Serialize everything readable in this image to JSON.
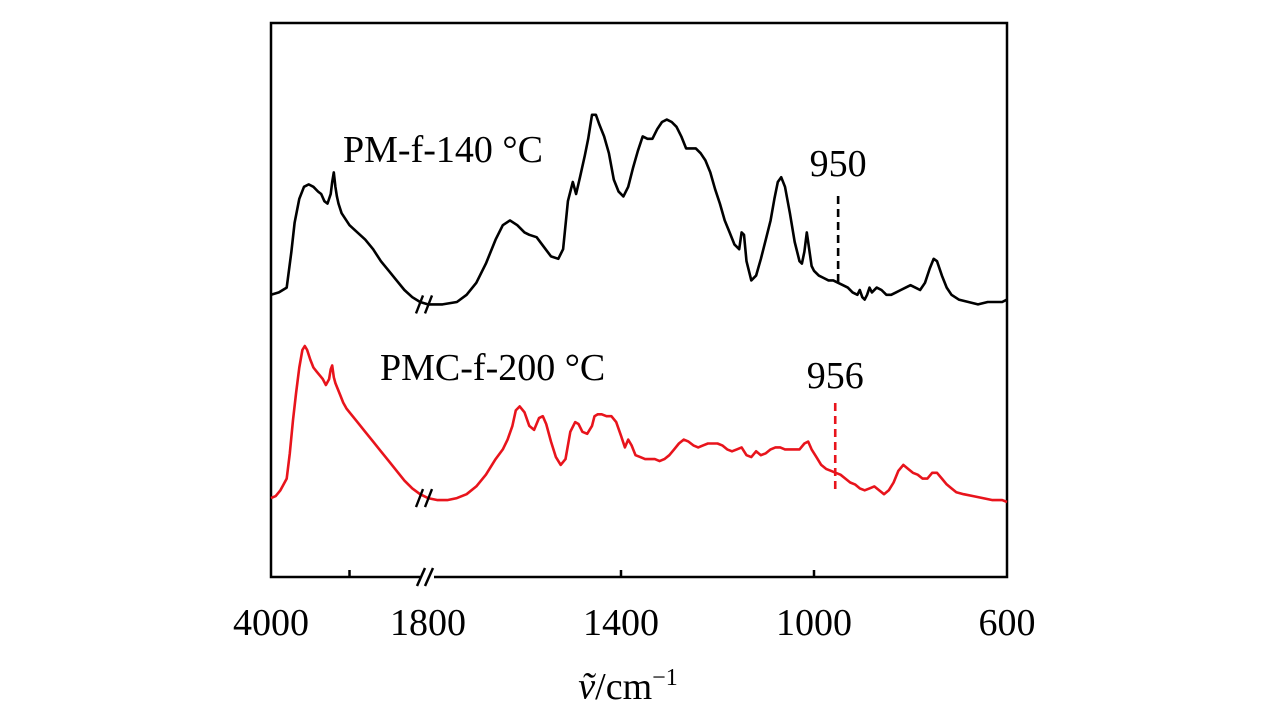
{
  "chart_data": {
    "type": "line",
    "title": "",
    "xlabel": "ṽ/cm⁻¹",
    "xlabel_parts": {
      "symbol": "ṽ",
      "unit": "/cm",
      "exponent": "−1"
    },
    "ylabel": "",
    "x_reversed": true,
    "x_break": [
      3000,
      1800
    ],
    "segments": {
      "high": {
        "xlim": [
          4000,
          3000
        ],
        "ticks": [
          4000,
          3500
        ]
      },
      "low": {
        "xlim": [
          1800,
          600
        ],
        "ticks": [
          1800,
          1400,
          1000,
          600
        ]
      }
    },
    "tick_labels": [
      "4000",
      "1800",
      "1400",
      "1000",
      "600"
    ],
    "grid": false,
    "legend": "none",
    "series": [
      {
        "name": "PM-f-140 °C",
        "color": "#000000",
        "high": [
          [
            4000,
            0.08
          ],
          [
            3950,
            0.09
          ],
          [
            3900,
            0.11
          ],
          [
            3870,
            0.26
          ],
          [
            3850,
            0.38
          ],
          [
            3820,
            0.48
          ],
          [
            3790,
            0.53
          ],
          [
            3760,
            0.54
          ],
          [
            3730,
            0.53
          ],
          [
            3700,
            0.51
          ],
          [
            3680,
            0.5
          ],
          [
            3660,
            0.47
          ],
          [
            3640,
            0.46
          ],
          [
            3620,
            0.5
          ],
          [
            3610,
            0.55
          ],
          [
            3600,
            0.59
          ],
          [
            3590,
            0.53
          ],
          [
            3580,
            0.49
          ],
          [
            3570,
            0.46
          ],
          [
            3550,
            0.42
          ],
          [
            3500,
            0.37
          ],
          [
            3450,
            0.34
          ],
          [
            3400,
            0.31
          ],
          [
            3350,
            0.27
          ],
          [
            3300,
            0.22
          ],
          [
            3250,
            0.18
          ],
          [
            3200,
            0.14
          ],
          [
            3150,
            0.1
          ],
          [
            3100,
            0.07
          ],
          [
            3050,
            0.05
          ],
          [
            3000,
            0.04
          ]
        ],
        "low": [
          [
            1800,
            0.04
          ],
          [
            1770,
            0.04
          ],
          [
            1740,
            0.05
          ],
          [
            1720,
            0.08
          ],
          [
            1700,
            0.13
          ],
          [
            1680,
            0.21
          ],
          [
            1660,
            0.31
          ],
          [
            1645,
            0.37
          ],
          [
            1630,
            0.39
          ],
          [
            1615,
            0.37
          ],
          [
            1600,
            0.34
          ],
          [
            1590,
            0.33
          ],
          [
            1575,
            0.32
          ],
          [
            1560,
            0.28
          ],
          [
            1545,
            0.24
          ],
          [
            1530,
            0.23
          ],
          [
            1520,
            0.27
          ],
          [
            1510,
            0.47
          ],
          [
            1500,
            0.55
          ],
          [
            1493,
            0.5
          ],
          [
            1485,
            0.57
          ],
          [
            1475,
            0.66
          ],
          [
            1468,
            0.73
          ],
          [
            1460,
            0.83
          ],
          [
            1452,
            0.83
          ],
          [
            1445,
            0.79
          ],
          [
            1435,
            0.74
          ],
          [
            1425,
            0.67
          ],
          [
            1415,
            0.56
          ],
          [
            1405,
            0.51
          ],
          [
            1395,
            0.49
          ],
          [
            1385,
            0.53
          ],
          [
            1375,
            0.61
          ],
          [
            1365,
            0.68
          ],
          [
            1355,
            0.74
          ],
          [
            1345,
            0.73
          ],
          [
            1335,
            0.73
          ],
          [
            1325,
            0.77
          ],
          [
            1315,
            0.8
          ],
          [
            1305,
            0.81
          ],
          [
            1295,
            0.8
          ],
          [
            1285,
            0.78
          ],
          [
            1275,
            0.74
          ],
          [
            1265,
            0.69
          ],
          [
            1255,
            0.69
          ],
          [
            1245,
            0.69
          ],
          [
            1235,
            0.67
          ],
          [
            1225,
            0.64
          ],
          [
            1215,
            0.59
          ],
          [
            1205,
            0.52
          ],
          [
            1195,
            0.46
          ],
          [
            1185,
            0.39
          ],
          [
            1175,
            0.34
          ],
          [
            1165,
            0.29
          ],
          [
            1155,
            0.27
          ],
          [
            1150,
            0.34
          ],
          [
            1145,
            0.33
          ],
          [
            1140,
            0.22
          ],
          [
            1130,
            0.14
          ],
          [
            1120,
            0.16
          ],
          [
            1110,
            0.23
          ],
          [
            1100,
            0.31
          ],
          [
            1090,
            0.39
          ],
          [
            1082,
            0.48
          ],
          [
            1075,
            0.55
          ],
          [
            1068,
            0.57
          ],
          [
            1060,
            0.53
          ],
          [
            1050,
            0.42
          ],
          [
            1040,
            0.3
          ],
          [
            1030,
            0.22
          ],
          [
            1025,
            0.21
          ],
          [
            1020,
            0.26
          ],
          [
            1015,
            0.34
          ],
          [
            1010,
            0.27
          ],
          [
            1005,
            0.2
          ],
          [
            1000,
            0.18
          ],
          [
            990,
            0.16
          ],
          [
            980,
            0.15
          ],
          [
            970,
            0.14
          ],
          [
            960,
            0.14
          ],
          [
            950,
            0.13
          ],
          [
            940,
            0.12
          ],
          [
            930,
            0.11
          ],
          [
            920,
            0.09
          ],
          [
            910,
            0.08
          ],
          [
            905,
            0.1
          ],
          [
            900,
            0.07
          ],
          [
            895,
            0.06
          ],
          [
            890,
            0.08
          ],
          [
            885,
            0.11
          ],
          [
            880,
            0.09
          ],
          [
            870,
            0.11
          ],
          [
            860,
            0.1
          ],
          [
            850,
            0.08
          ],
          [
            840,
            0.08
          ],
          [
            830,
            0.09
          ],
          [
            820,
            0.1
          ],
          [
            810,
            0.11
          ],
          [
            800,
            0.12
          ],
          [
            790,
            0.11
          ],
          [
            780,
            0.1
          ],
          [
            770,
            0.13
          ],
          [
            760,
            0.19
          ],
          [
            752,
            0.23
          ],
          [
            745,
            0.22
          ],
          [
            735,
            0.16
          ],
          [
            725,
            0.11
          ],
          [
            715,
            0.08
          ],
          [
            700,
            0.06
          ],
          [
            680,
            0.05
          ],
          [
            660,
            0.04
          ],
          [
            640,
            0.05
          ],
          [
            620,
            0.05
          ],
          [
            610,
            0.05
          ],
          [
            600,
            0.06
          ]
        ]
      },
      {
        "name": "PMC-f-200 °C",
        "color": "#e8141c",
        "high": [
          [
            4000,
            0.02
          ],
          [
            3970,
            0.03
          ],
          [
            3940,
            0.06
          ],
          [
            3920,
            0.09
          ],
          [
            3900,
            0.12
          ],
          [
            3880,
            0.25
          ],
          [
            3860,
            0.42
          ],
          [
            3840,
            0.56
          ],
          [
            3820,
            0.69
          ],
          [
            3800,
            0.78
          ],
          [
            3785,
            0.8
          ],
          [
            3770,
            0.78
          ],
          [
            3750,
            0.73
          ],
          [
            3730,
            0.69
          ],
          [
            3710,
            0.67
          ],
          [
            3690,
            0.65
          ],
          [
            3670,
            0.63
          ],
          [
            3650,
            0.6
          ],
          [
            3630,
            0.63
          ],
          [
            3620,
            0.68
          ],
          [
            3610,
            0.7
          ],
          [
            3600,
            0.64
          ],
          [
            3590,
            0.61
          ],
          [
            3580,
            0.59
          ],
          [
            3560,
            0.55
          ],
          [
            3540,
            0.51
          ],
          [
            3520,
            0.48
          ],
          [
            3500,
            0.46
          ],
          [
            3450,
            0.41
          ],
          [
            3400,
            0.36
          ],
          [
            3350,
            0.31
          ],
          [
            3300,
            0.26
          ],
          [
            3250,
            0.21
          ],
          [
            3200,
            0.16
          ],
          [
            3150,
            0.11
          ],
          [
            3100,
            0.07
          ],
          [
            3050,
            0.04
          ],
          [
            3000,
            0.02
          ]
        ],
        "low": [
          [
            1800,
            0.02
          ],
          [
            1780,
            0.01
          ],
          [
            1760,
            0.01
          ],
          [
            1740,
            0.02
          ],
          [
            1720,
            0.04
          ],
          [
            1700,
            0.08
          ],
          [
            1680,
            0.14
          ],
          [
            1660,
            0.22
          ],
          [
            1645,
            0.27
          ],
          [
            1635,
            0.32
          ],
          [
            1625,
            0.39
          ],
          [
            1618,
            0.47
          ],
          [
            1610,
            0.49
          ],
          [
            1600,
            0.46
          ],
          [
            1590,
            0.39
          ],
          [
            1580,
            0.37
          ],
          [
            1570,
            0.43
          ],
          [
            1562,
            0.44
          ],
          [
            1555,
            0.4
          ],
          [
            1545,
            0.31
          ],
          [
            1535,
            0.23
          ],
          [
            1525,
            0.19
          ],
          [
            1515,
            0.22
          ],
          [
            1505,
            0.36
          ],
          [
            1495,
            0.41
          ],
          [
            1488,
            0.4
          ],
          [
            1480,
            0.36
          ],
          [
            1470,
            0.35
          ],
          [
            1460,
            0.39
          ],
          [
            1455,
            0.44
          ],
          [
            1448,
            0.45
          ],
          [
            1440,
            0.45
          ],
          [
            1430,
            0.44
          ],
          [
            1420,
            0.44
          ],
          [
            1410,
            0.41
          ],
          [
            1400,
            0.34
          ],
          [
            1392,
            0.28
          ],
          [
            1385,
            0.32
          ],
          [
            1378,
            0.29
          ],
          [
            1370,
            0.24
          ],
          [
            1360,
            0.23
          ],
          [
            1350,
            0.22
          ],
          [
            1340,
            0.22
          ],
          [
            1330,
            0.22
          ],
          [
            1320,
            0.21
          ],
          [
            1310,
            0.22
          ],
          [
            1300,
            0.24
          ],
          [
            1290,
            0.27
          ],
          [
            1280,
            0.3
          ],
          [
            1270,
            0.32
          ],
          [
            1260,
            0.31
          ],
          [
            1250,
            0.29
          ],
          [
            1240,
            0.28
          ],
          [
            1230,
            0.29
          ],
          [
            1220,
            0.3
          ],
          [
            1210,
            0.3
          ],
          [
            1200,
            0.3
          ],
          [
            1190,
            0.29
          ],
          [
            1180,
            0.27
          ],
          [
            1170,
            0.26
          ],
          [
            1160,
            0.27
          ],
          [
            1150,
            0.28
          ],
          [
            1140,
            0.24
          ],
          [
            1130,
            0.23
          ],
          [
            1120,
            0.26
          ],
          [
            1110,
            0.24
          ],
          [
            1100,
            0.25
          ],
          [
            1090,
            0.27
          ],
          [
            1080,
            0.28
          ],
          [
            1070,
            0.28
          ],
          [
            1060,
            0.27
          ],
          [
            1050,
            0.27
          ],
          [
            1040,
            0.27
          ],
          [
            1030,
            0.27
          ],
          [
            1020,
            0.3
          ],
          [
            1012,
            0.31
          ],
          [
            1005,
            0.27
          ],
          [
            995,
            0.23
          ],
          [
            985,
            0.19
          ],
          [
            975,
            0.17
          ],
          [
            965,
            0.16
          ],
          [
            955,
            0.15
          ],
          [
            945,
            0.14
          ],
          [
            935,
            0.12
          ],
          [
            925,
            0.1
          ],
          [
            915,
            0.09
          ],
          [
            905,
            0.07
          ],
          [
            895,
            0.06
          ],
          [
            885,
            0.07
          ],
          [
            875,
            0.08
          ],
          [
            865,
            0.06
          ],
          [
            855,
            0.04
          ],
          [
            845,
            0.06
          ],
          [
            835,
            0.1
          ],
          [
            825,
            0.16
          ],
          [
            815,
            0.19
          ],
          [
            805,
            0.17
          ],
          [
            795,
            0.15
          ],
          [
            785,
            0.14
          ],
          [
            775,
            0.12
          ],
          [
            765,
            0.12
          ],
          [
            755,
            0.15
          ],
          [
            745,
            0.15
          ],
          [
            735,
            0.12
          ],
          [
            725,
            0.09
          ],
          [
            715,
            0.07
          ],
          [
            705,
            0.05
          ],
          [
            690,
            0.04
          ],
          [
            670,
            0.03
          ],
          [
            650,
            0.02
          ],
          [
            630,
            0.01
          ],
          [
            610,
            0.01
          ],
          [
            600,
            0.0
          ]
        ]
      }
    ],
    "annotations": [
      {
        "series": 0,
        "label": "950",
        "x": 950
      },
      {
        "series": 1,
        "label": "956",
        "x": 956
      }
    ]
  }
}
